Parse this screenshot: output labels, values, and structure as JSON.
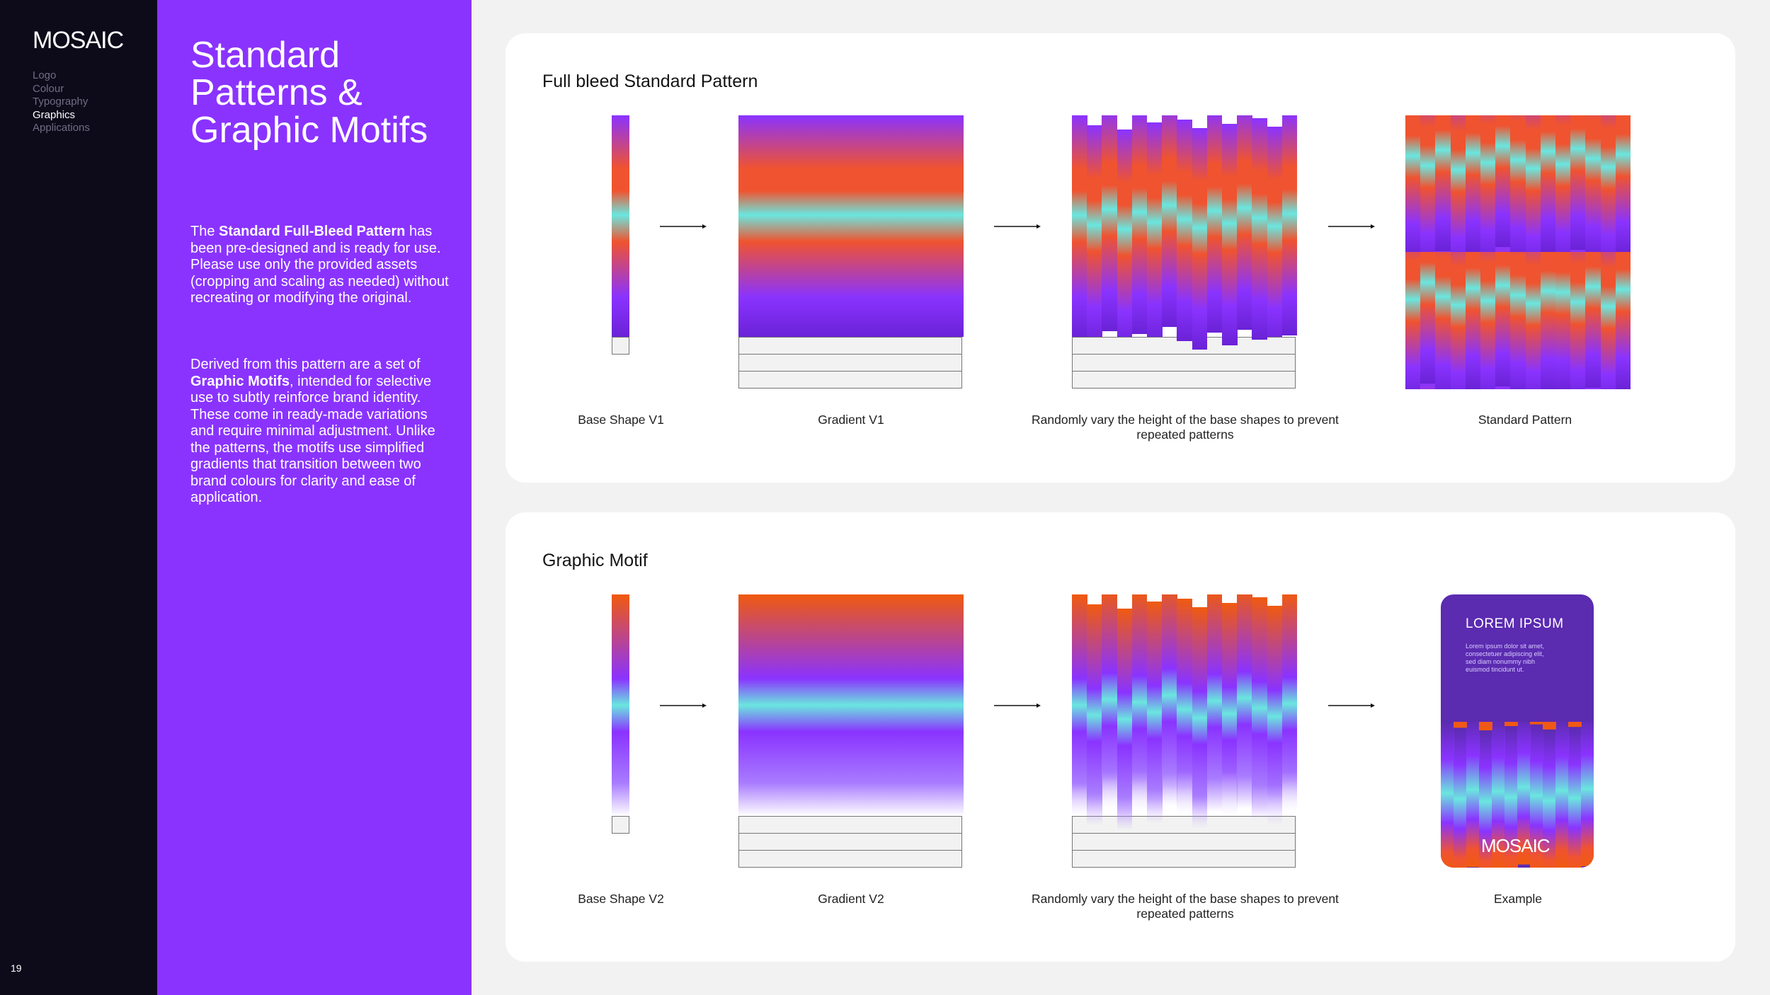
{
  "sidebar": {
    "logo": "MOSAIC",
    "nav": [
      {
        "label": "Logo",
        "active": false
      },
      {
        "label": "Colour",
        "active": false
      },
      {
        "label": "Typography",
        "active": false
      },
      {
        "label": "Graphics",
        "active": true
      },
      {
        "label": "Applications",
        "active": false
      }
    ],
    "page_number": "19"
  },
  "intro": {
    "title": "Standard Patterns & Graphic Motifs",
    "p1_prefix": "The ",
    "p1_bold": "Standard Full-Bleed Pattern",
    "p1_rest": " has been pre-designed and is ready for use. Please use only the provided assets (cropping and scaling as needed) without recreating or modifying the original.",
    "p2_prefix": "Derived from this pattern are a set of ",
    "p2_bold": "Graphic Motifs",
    "p2_rest": ", intended for selective use to subtly reinforce brand identity. These come in ready-made variations and require minimal adjustment. Unlike the patterns, the motifs use simplified gradients that transition between two brand colours for clarity and ease of application."
  },
  "colors": {
    "purple": "#8a33ff",
    "orange": "#f0532f",
    "deep_orange": "#f05a0f",
    "cyan": "#6ae6df",
    "dark": "#0d0b1a"
  },
  "section1": {
    "title": "Full bleed Standard Pattern",
    "captions": [
      "Base Shape V1",
      "Gradient V1",
      "Randomly vary the height of the base shapes to prevent repeated patterns",
      "Standard Pattern"
    ]
  },
  "section2": {
    "title": "Graphic Motif",
    "captions": [
      "Base Shape V2",
      "Gradient V2",
      "Randomly vary the height of the base shapes to prevent repeated patterns",
      "Example"
    ],
    "example": {
      "title": "LOREM IPSUM",
      "body": "Lorem ipsum dolor sit amet, consectetuer adipiscing elit, sed diam nonummy nibh euismod tincidunt ut.",
      "logo": "MOSAIC"
    }
  }
}
